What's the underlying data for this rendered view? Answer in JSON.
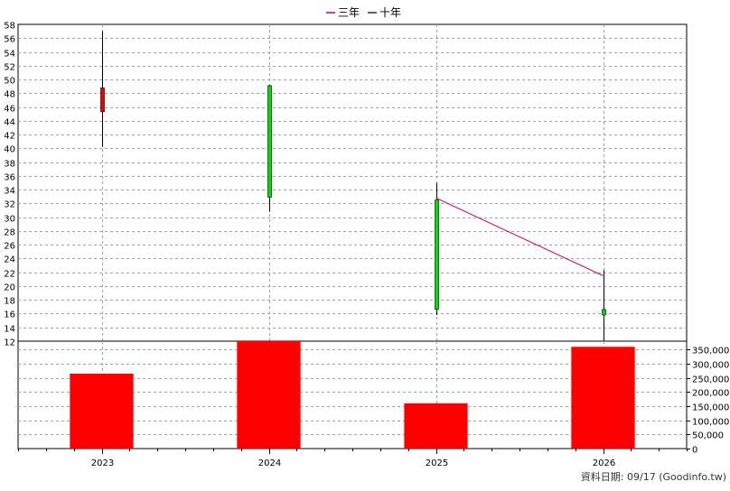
{
  "colors": {
    "background": "#ffffff",
    "grid": "#a0a0a0",
    "axis": "#000000",
    "candle_up": "#00dd00",
    "candle_down": "#ee0000",
    "wick": "#000000",
    "three_year_line": "#cc0066",
    "ten_year_line": "#660099",
    "volume_bar": "#ff0000"
  },
  "footnote": "資料日期: 09/17  (Goodinfo.tw)",
  "chart_data": [
    {
      "type": "candlestick",
      "title": "",
      "legend_position": "top-center",
      "legend": [
        {
          "name": "三年",
          "color": "#cc0066"
        },
        {
          "name": "十年",
          "color": "#660099"
        }
      ],
      "categories": [
        "2023",
        "2024",
        "2025",
        "2026"
      ],
      "ohlc": [
        {
          "open": 48.8,
          "high": 57.0,
          "low": 40.2,
          "close": 45.3
        },
        {
          "open": 32.9,
          "high": 49.2,
          "low": 30.8,
          "close": 49.1
        },
        {
          "open": 16.6,
          "high": 35.0,
          "low": 15.8,
          "close": 32.5
        },
        {
          "open": 15.8,
          "high": 22.3,
          "low": 12.0,
          "close": 16.6
        }
      ],
      "lines": [
        {
          "name": "三年",
          "x": [
            "2025",
            "2026"
          ],
          "y": [
            32.8,
            21.5
          ]
        }
      ],
      "ylim": [
        12,
        58
      ],
      "yticks": [
        12,
        14,
        16,
        18,
        20,
        22,
        24,
        26,
        28,
        30,
        32,
        34,
        36,
        38,
        40,
        42,
        44,
        46,
        48,
        50,
        52,
        54,
        56,
        58
      ],
      "grid": true
    },
    {
      "type": "bar",
      "categories": [
        "2023",
        "2024",
        "2025",
        "2026"
      ],
      "values": [
        265000,
        380000,
        160000,
        360000
      ],
      "ylim": [
        0,
        380000
      ],
      "yticks": [
        "0",
        "50,000",
        "100,000",
        "150,000",
        "200,000",
        "250,000",
        "300,000",
        "350,000"
      ],
      "ytick_values": [
        0,
        50000,
        100000,
        150000,
        200000,
        250000,
        300000,
        350000
      ],
      "grid": true
    }
  ]
}
